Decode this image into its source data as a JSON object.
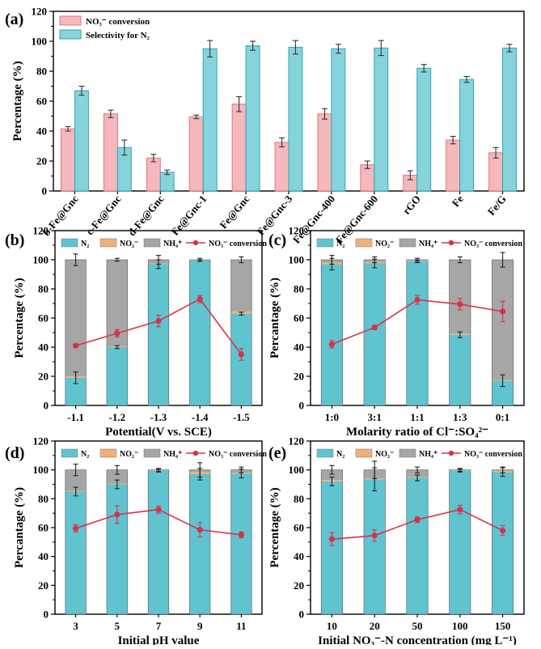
{
  "colors": {
    "conversion_bar": "#e8707b",
    "conversion_bar_fill": "#f4b8bd",
    "selectivity_bar": "#2fa6b4",
    "selectivity_bar_fill": "#86d3db",
    "n2": "#5fc4d0",
    "no2": "#f0b07a",
    "nh4": "#a6a6a6",
    "line": "#d6334a",
    "axis": "#000000"
  },
  "chart_data": [
    {
      "panel": "(a)",
      "type": "bar",
      "ylabel": "Percentage (%)",
      "ylim": [
        0,
        120
      ],
      "yticks": [
        "0",
        "20",
        "40",
        "60",
        "80",
        "100",
        "120"
      ],
      "legend_placement": "top-left",
      "categories": [
        "b-Fe@Gnc",
        "c-Fe@Gnc",
        "d-Fe@Gnc",
        "Fe@Gnc-1",
        "Fe@Gnc",
        "Fe@Gnc-3",
        "Fe@Gnc-400",
        "Fe@Gnc-600",
        "rGO",
        "Fe",
        "Fe/G"
      ],
      "series": [
        {
          "name": "NO₃⁻ conversion",
          "values": [
            41.5,
            51.5,
            22,
            49.5,
            58,
            32.5,
            51.5,
            17.5,
            10.5,
            34,
            25.5
          ],
          "errors": [
            1.5,
            2.5,
            2.5,
            1.2,
            5,
            3,
            3.5,
            2.5,
            3,
            2.5,
            3.5
          ]
        },
        {
          "name": "Selectivity for N₂",
          "values": [
            67,
            29,
            12.5,
            95,
            97,
            96,
            95,
            95.5,
            82,
            74.5,
            95.5
          ],
          "errors": [
            3,
            5,
            1.5,
            5.5,
            3,
            4.5,
            3,
            5,
            2.5,
            2,
            2.5
          ]
        }
      ]
    },
    {
      "panel": "(b)",
      "type": "bar",
      "xlabel": "Potential(V vs. SCE)",
      "ylabel": "Percentage (%)",
      "ylim": [
        0,
        120
      ],
      "yticks": [
        "0",
        "20",
        "40",
        "60",
        "80",
        "100",
        "120"
      ],
      "categories": [
        "-1.1",
        "-1.2",
        "-1.3",
        "-1.4",
        "-1.5"
      ],
      "stack_series": [
        {
          "name": "N₂",
          "values": [
            19,
            40,
            97,
            99.5,
            63
          ]
        },
        {
          "name": "NO₂⁻",
          "values": [
            1,
            0.5,
            0.5,
            0.2,
            1.5
          ]
        },
        {
          "name": "NH₄⁺",
          "values": [
            80,
            59.5,
            2.5,
            0.3,
            35.5
          ]
        }
      ],
      "n2_err": [
        4,
        1,
        3,
        0.5,
        1
      ],
      "total_err": [
        4,
        1,
        3,
        1,
        2
      ],
      "line_series": {
        "name": "NO₃⁻ conversion",
        "values": [
          41,
          49.5,
          58,
          73,
          35
        ],
        "errors": [
          1,
          2.5,
          4,
          2.5,
          4
        ]
      }
    },
    {
      "panel": "(c)",
      "type": "bar",
      "xlabel": "Molarity ratio of Cl⁻:SO₄²⁻",
      "ylabel": "Percantage (%)",
      "ylim": [
        0,
        120
      ],
      "yticks": [
        "0",
        "20",
        "40",
        "60",
        "80",
        "100",
        "120"
      ],
      "categories": [
        "1:0",
        "3:1",
        "1:1",
        "1:3",
        "0:1"
      ],
      "stack_series": [
        {
          "name": "N₂",
          "values": [
            97,
            97.5,
            99,
            48.5,
            17
          ]
        },
        {
          "name": "NO₂⁻",
          "values": [
            1,
            1,
            0.3,
            0.5,
            0.5
          ]
        },
        {
          "name": "NH₄⁺",
          "values": [
            2,
            1.5,
            0.7,
            51,
            82.5
          ]
        }
      ],
      "n2_err": [
        4,
        3,
        1,
        2,
        4
      ],
      "total_err": [
        3,
        2,
        1,
        2,
        5
      ],
      "line_series": {
        "name": "NO₃⁻ conversion",
        "values": [
          42,
          53.5,
          72.5,
          69.5,
          64.5
        ],
        "errors": [
          2.5,
          1.5,
          3,
          4,
          7
        ]
      }
    },
    {
      "panel": "(d)",
      "type": "bar",
      "xlabel": "Initial pH value",
      "ylabel": "Percantage (%)",
      "ylim": [
        0,
        120
      ],
      "yticks": [
        "0",
        "20",
        "40",
        "60",
        "80",
        "100",
        "120"
      ],
      "categories": [
        "3",
        "5",
        "7",
        "9",
        "11"
      ],
      "stack_series": [
        {
          "name": "N₂",
          "values": [
            85,
            90,
            99.5,
            97,
            97.5
          ]
        },
        {
          "name": "NO₂⁻",
          "values": [
            0.5,
            0.5,
            0.1,
            1.5,
            0.5
          ]
        },
        {
          "name": "NH₄⁺",
          "values": [
            14.5,
            9.5,
            0.4,
            1.5,
            2
          ]
        }
      ],
      "n2_err": [
        3,
        3,
        1,
        4,
        3
      ],
      "total_err": [
        4,
        3,
        1,
        5,
        2
      ],
      "line_series": {
        "name": "NO₃⁻ conversion",
        "values": [
          59.5,
          69,
          72.5,
          58.5,
          55
        ],
        "errors": [
          2.5,
          6,
          2.5,
          5,
          2
        ]
      }
    },
    {
      "panel": "(e)",
      "type": "bar",
      "xlabel": "Initial NO₃⁻-N concentration (mg L⁻¹)",
      "ylabel": "Percentage (%)",
      "ylim": [
        0,
        120
      ],
      "yticks": [
        "0",
        "20",
        "40",
        "60",
        "80",
        "100",
        "120"
      ],
      "categories": [
        "10",
        "20",
        "50",
        "100",
        "150"
      ],
      "stack_series": [
        {
          "name": "N₂",
          "values": [
            92,
            93.5,
            94.5,
            99.5,
            98.5
          ]
        },
        {
          "name": "NO₂⁻",
          "values": [
            1,
            0.5,
            0.5,
            0.2,
            1
          ]
        },
        {
          "name": "NH₄⁺",
          "values": [
            7,
            6,
            5,
            0.3,
            0.5
          ]
        }
      ],
      "n2_err": [
        3,
        8,
        2,
        1,
        3
      ],
      "total_err": [
        3,
        6,
        2,
        1,
        2
      ],
      "line_series": {
        "name": "NO₃⁻ conversion",
        "values": [
          52,
          54.5,
          65.5,
          72.5,
          58
        ],
        "errors": [
          4.5,
          4,
          2,
          3,
          3.5
        ]
      }
    }
  ]
}
